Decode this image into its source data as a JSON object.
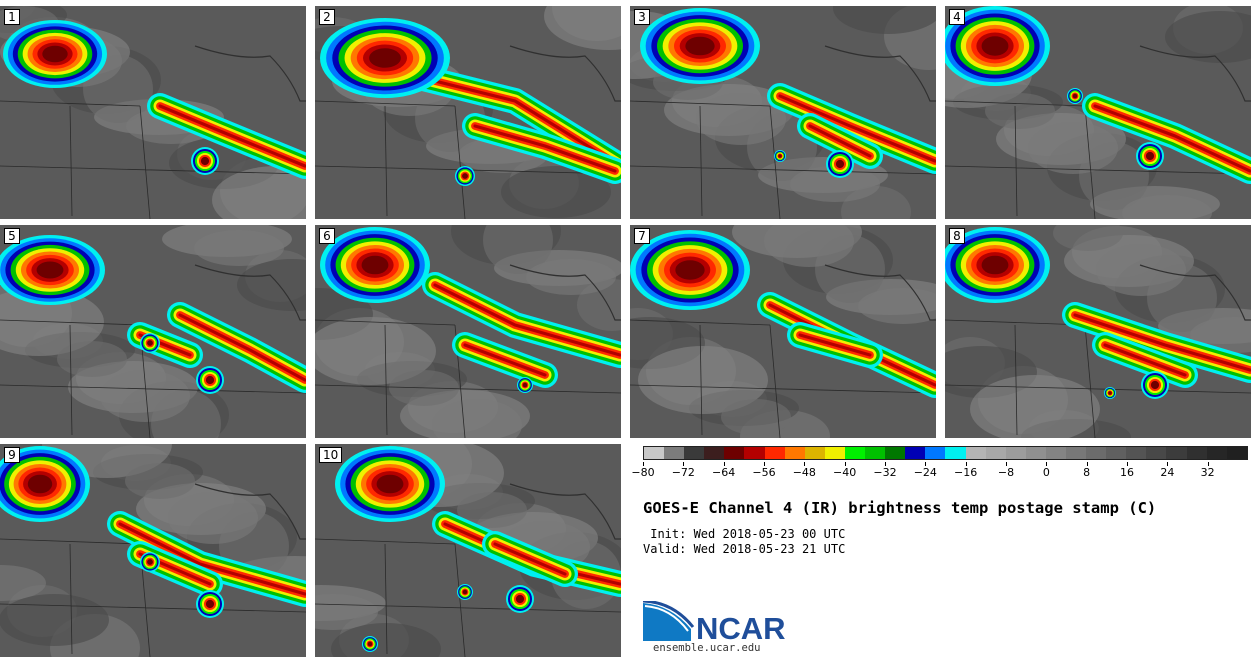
{
  "panels": [
    {
      "number": "1"
    },
    {
      "number": "2"
    },
    {
      "number": "3"
    },
    {
      "number": "4"
    },
    {
      "number": "5"
    },
    {
      "number": "6"
    },
    {
      "number": "7"
    },
    {
      "number": "8"
    },
    {
      "number": "9"
    },
    {
      "number": "10"
    }
  ],
  "colorbar": {
    "colors": [
      "#c8c8c8",
      "#7c7c7c",
      "#3a3a3a",
      "#3c1e1e",
      "#6e0000",
      "#b40000",
      "#ff2800",
      "#ff7800",
      "#dcb400",
      "#f0f000",
      "#00f000",
      "#00c000",
      "#007800",
      "#0000b4",
      "#0078ff",
      "#00f0f0",
      "#b4b4b4",
      "#a8a8a8",
      "#9c9c9c",
      "#909090",
      "#848484",
      "#787878",
      "#6c6c6c",
      "#606060",
      "#545454",
      "#484848",
      "#3c3c3c",
      "#303030",
      "#262626",
      "#202020"
    ],
    "tick_labels": [
      "−80",
      "−72",
      "−64",
      "−56",
      "−48",
      "−40",
      "−32",
      "−24",
      "−16",
      "−8",
      "0",
      "8",
      "16",
      "24",
      "32"
    ]
  },
  "title": "GOES-E Channel 4 (IR) brightness temp postage stamp (C)",
  "init_line": " Init: Wed 2018-05-23 00 UTC",
  "valid_line": "Valid: Wed 2018-05-23 21 UTC",
  "logo": {
    "text": "NCAR",
    "colors": {
      "brand_blue": "#1f4e9a",
      "swoosh": "#0f79c4"
    }
  },
  "url": "ensemble.ucar.edu"
}
